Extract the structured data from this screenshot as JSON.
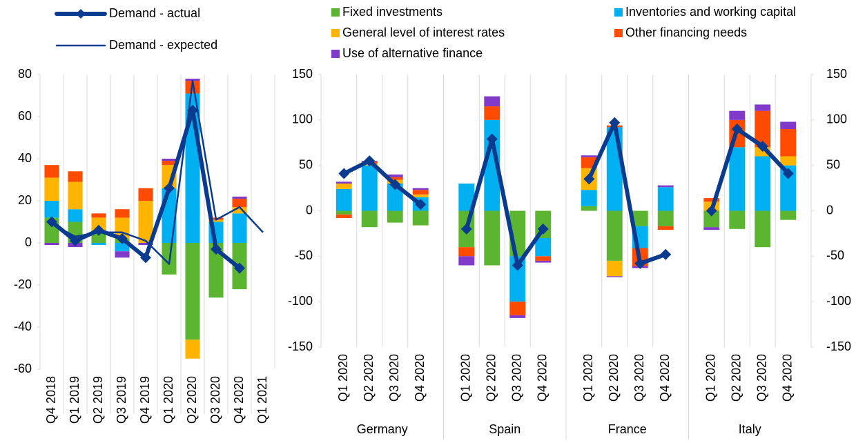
{
  "chart_data": [
    {
      "type": "bar",
      "stacked": true,
      "categories": [
        "Q4 2018",
        "Q1 2019",
        "Q2 2019",
        "Q3 2019",
        "Q4 2019",
        "Q1 2020",
        "Q2 2020",
        "Q3 2020",
        "Q4 2020",
        "Q1 2021"
      ],
      "ylim": [
        -60,
        80
      ],
      "yticks": [
        -60,
        -40,
        -20,
        0,
        20,
        40,
        60,
        80
      ],
      "series": [
        {
          "color": "#5cb531",
          "values": [
            12,
            10,
            6,
            2,
            0,
            -15,
            -46,
            -26,
            -22,
            null
          ]
        },
        {
          "color": "#00b0f0",
          "values": [
            8,
            6,
            -1,
            -4,
            0,
            26,
            71,
            10,
            14,
            null
          ]
        },
        {
          "color": "#ffb400",
          "values": [
            11,
            13,
            6,
            10,
            20,
            11,
            -9,
            1,
            3,
            null
          ]
        },
        {
          "color": "#ff4b00",
          "values": [
            6,
            5,
            2,
            4,
            6,
            2,
            6,
            1,
            4,
            null
          ]
        },
        {
          "color": "#8139c9",
          "values": [
            -1,
            -2,
            0,
            -3,
            -1,
            1,
            1,
            0,
            1,
            null
          ]
        },
        {
          "name": "Demand - actual",
          "type": "line",
          "color": "#0b3b8f",
          "line_width": 6,
          "marker": "diamond",
          "values": [
            10,
            1,
            6,
            2,
            -7,
            26,
            63,
            -3,
            -12,
            null
          ]
        },
        {
          "name": "Demand - expected",
          "type": "line",
          "color": "#0b3b8f",
          "line_width": 2.5,
          "values": [
            9,
            3,
            5,
            5,
            1,
            -10,
            77,
            11,
            17,
            5
          ]
        }
      ]
    },
    {
      "type": "bar",
      "stacked": true,
      "right_axis": true,
      "groups": [
        {
          "name": "Germany",
          "categories": [
            "Q1 2020",
            "Q2 2020",
            "Q3 2020",
            "Q4 2020"
          ]
        },
        {
          "name": "Spain",
          "categories": [
            "Q1 2020",
            "Q2 2020",
            "Q3 2020",
            "Q4 2020"
          ]
        },
        {
          "name": "France",
          "categories": [
            "Q1 2020",
            "Q2 2020",
            "Q3 2020",
            "Q4 2020"
          ]
        },
        {
          "name": "Italy",
          "categories": [
            "Q1 2020",
            "Q2 2020",
            "Q3 2020",
            "Q4 2020"
          ]
        }
      ],
      "ylim": [
        -150,
        150
      ],
      "yticks": [
        -150,
        -100,
        -50,
        0,
        50,
        100,
        150
      ],
      "series": [
        {
          "name": "Fixed investments",
          "color": "#5cb531",
          "values": [
            -4,
            -18,
            -13,
            -16,
            -40,
            -60,
            -50,
            -30,
            5,
            -55,
            -17,
            -17,
            -18,
            -20,
            -40,
            -10
          ]
        },
        {
          "name": "Inventories and working capital",
          "color": "#00b0f0",
          "values": [
            24,
            50,
            30,
            15,
            30,
            100,
            -50,
            -20,
            18,
            92,
            -24,
            26,
            0,
            70,
            60,
            50
          ]
        },
        {
          "name": "General level of interest rates",
          "color": "#ffb400",
          "values": [
            6,
            2,
            4,
            3,
            0,
            0,
            0,
            0,
            24,
            -17,
            0,
            0,
            10,
            0,
            10,
            10
          ]
        },
        {
          "name": "Other financing needs",
          "color": "#ff4b00",
          "values": [
            -4,
            2,
            3,
            5,
            -10,
            15,
            -15,
            -5,
            12,
            2,
            -20,
            -4,
            4,
            30,
            40,
            30
          ]
        },
        {
          "name": "Use of alternative finance",
          "color": "#8139c9",
          "values": [
            2,
            1,
            3,
            2,
            -10,
            11,
            -3,
            -2,
            2,
            -1,
            -2,
            2,
            -3,
            10,
            7,
            8
          ]
        },
        {
          "type": "line",
          "color": "#0b3b8f",
          "line_width": 6,
          "marker": "diamond",
          "values": [
            41,
            55,
            29,
            7,
            -20,
            79,
            -60,
            -20,
            35,
            97,
            -58,
            -48,
            0,
            90,
            71,
            41
          ]
        }
      ]
    }
  ]
}
